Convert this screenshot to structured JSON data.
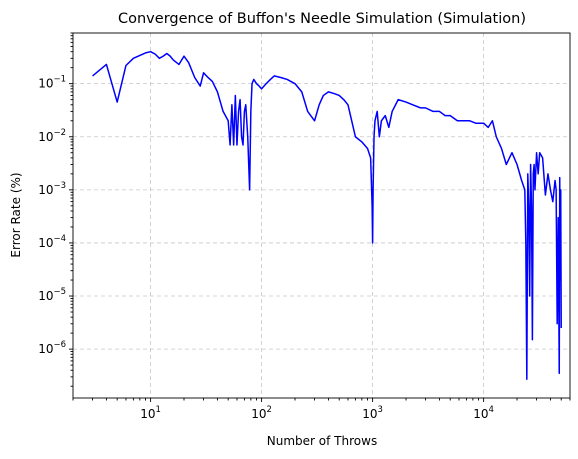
{
  "chart_data": {
    "type": "line",
    "title": "Convergence of Buffon's Needle Simulation (Simulation)",
    "xlabel": "Number of Throws",
    "ylabel": "Error Rate (%)",
    "xscale": "log",
    "yscale": "log",
    "xlim": [
      2.0,
      60000
    ],
    "ylim": [
      1.2e-07,
      0.9
    ],
    "x_ticks": [
      {
        "value": 10,
        "base": "10",
        "exp": "1"
      },
      {
        "value": 100,
        "base": "10",
        "exp": "2"
      },
      {
        "value": 1000,
        "base": "10",
        "exp": "3"
      },
      {
        "value": 10000,
        "base": "10",
        "exp": "4"
      }
    ],
    "y_ticks": [
      {
        "value": 1e-06,
        "base": "10",
        "exp": "−6"
      },
      {
        "value": 1e-05,
        "base": "10",
        "exp": "−5"
      },
      {
        "value": 0.0001,
        "base": "10",
        "exp": "−4"
      },
      {
        "value": 0.001,
        "base": "10",
        "exp": "−3"
      },
      {
        "value": 0.01,
        "base": "10",
        "exp": "−2"
      },
      {
        "value": 0.1,
        "base": "10",
        "exp": "−1"
      }
    ],
    "grid": true,
    "line_color": "#0000ff",
    "series": [
      {
        "x": [
          3,
          4,
          5,
          6,
          7,
          8,
          9,
          10,
          11,
          12,
          13,
          14,
          15,
          16,
          18,
          20,
          22,
          25,
          28,
          30,
          33,
          36,
          40,
          45,
          50,
          52,
          54,
          56,
          58,
          60,
          62,
          64,
          66,
          68,
          70,
          72,
          75,
          78,
          80,
          82,
          85,
          90,
          95,
          100,
          110,
          120,
          130,
          150,
          170,
          200,
          230,
          260,
          300,
          330,
          360,
          400,
          450,
          500,
          550,
          600,
          700,
          800,
          900,
          960,
          990,
          1000,
          1010,
          1030,
          1050,
          1100,
          1150,
          1200,
          1300,
          1400,
          1500,
          1700,
          2000,
          2300,
          2700,
          3000,
          3500,
          4000,
          4500,
          5000,
          5800,
          6500,
          7500,
          8500,
          10000,
          11000,
          12000,
          13000,
          14500,
          16000,
          18000,
          20000,
          22000,
          23500,
          24000,
          24500,
          25000,
          25500,
          26000,
          26500,
          27000,
          27500,
          28000,
          28500,
          29000,
          30000,
          31000,
          32000,
          34000,
          36000,
          38000,
          40000,
          42000,
          44000,
          45000,
          46000,
          47000,
          48000,
          48500,
          49000,
          49500,
          50000
        ],
        "y": [
          0.14,
          0.23,
          0.045,
          0.22,
          0.3,
          0.34,
          0.38,
          0.4,
          0.36,
          0.3,
          0.33,
          0.37,
          0.33,
          0.28,
          0.23,
          0.33,
          0.25,
          0.13,
          0.09,
          0.16,
          0.13,
          0.11,
          0.07,
          0.03,
          0.02,
          0.007,
          0.04,
          0.007,
          0.06,
          0.007,
          0.03,
          0.05,
          0.01,
          0.007,
          0.03,
          0.04,
          0.01,
          0.001,
          0.03,
          0.1,
          0.12,
          0.1,
          0.09,
          0.08,
          0.1,
          0.12,
          0.14,
          0.13,
          0.12,
          0.1,
          0.07,
          0.03,
          0.02,
          0.04,
          0.06,
          0.07,
          0.065,
          0.06,
          0.05,
          0.04,
          0.01,
          0.008,
          0.006,
          0.004,
          0.0005,
          0.0001,
          0.001,
          0.01,
          0.02,
          0.03,
          0.01,
          0.02,
          0.025,
          0.015,
          0.03,
          0.05,
          0.045,
          0.04,
          0.035,
          0.035,
          0.03,
          0.03,
          0.025,
          0.025,
          0.02,
          0.02,
          0.02,
          0.018,
          0.018,
          0.015,
          0.02,
          0.01,
          0.006,
          0.003,
          0.005,
          0.003,
          0.0015,
          0.001,
          0.0001,
          2.7e-07,
          0.002,
          0.0005,
          1e-05,
          0.003,
          0.0005,
          1.5e-06,
          0.002,
          0.003,
          0.001,
          0.005,
          0.002,
          0.005,
          0.004,
          0.0008,
          0.002,
          0.001,
          0.0006,
          0.0015,
          0.001,
          3e-06,
          0.0003,
          3.5e-07,
          0.0017,
          2e-05,
          0.001,
          2.5e-06
        ]
      }
    ]
  }
}
